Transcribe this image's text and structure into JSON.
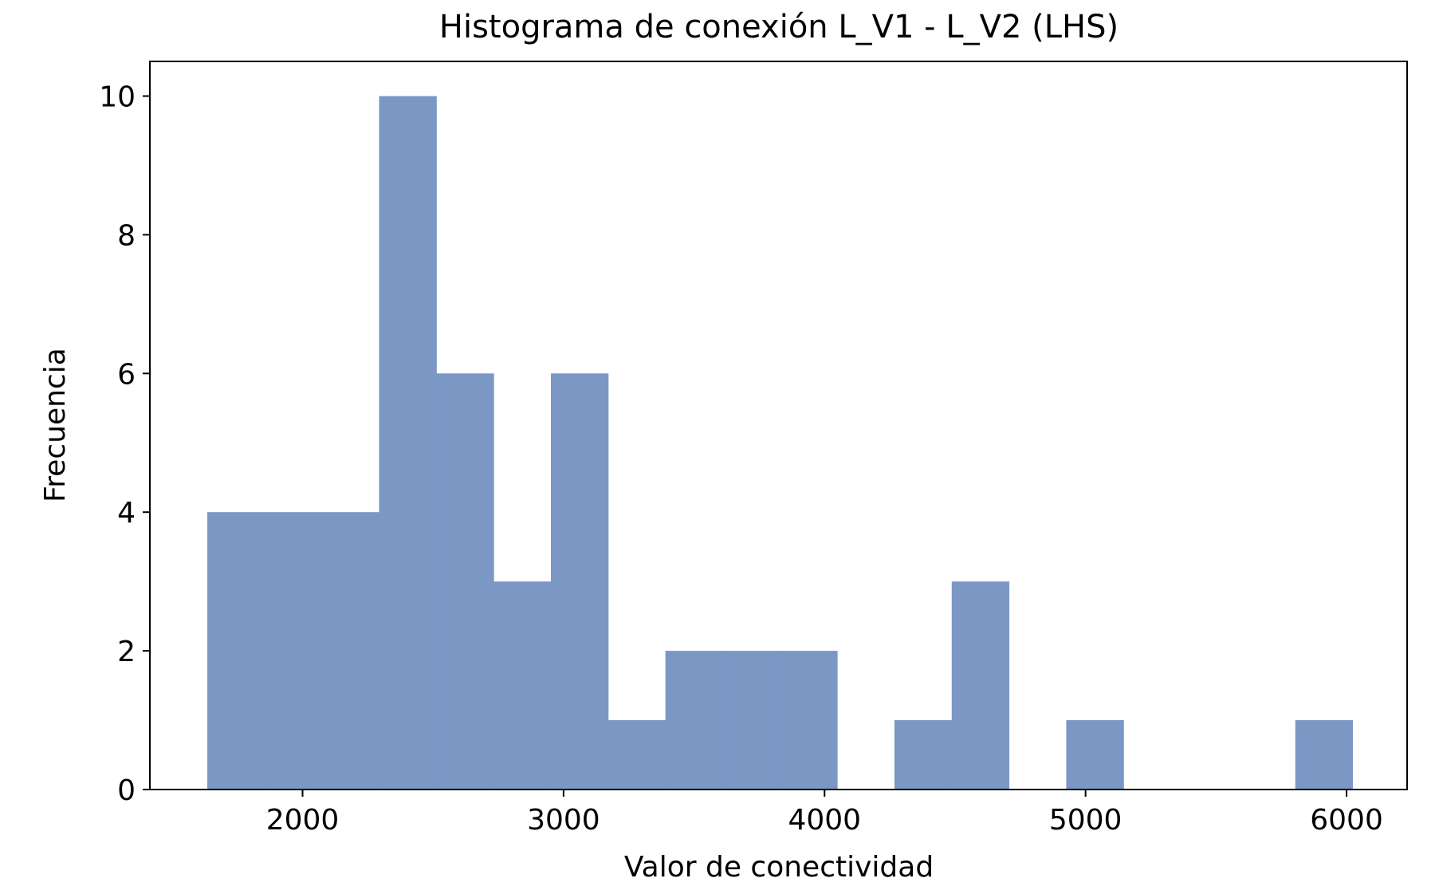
{
  "chart_data": {
    "type": "bar",
    "title": "Histograma de conexión L_V1 - L_V2 (LHS)",
    "xlabel": "Valor de conectividad",
    "ylabel": "Frecuencia",
    "xlim": [
      1415,
      6232
    ],
    "ylim": [
      0,
      10.5
    ],
    "xticks": [
      2000,
      3000,
      4000,
      5000,
      6000
    ],
    "yticks": [
      0,
      2,
      4,
      6,
      8,
      10
    ],
    "bar_color": "#7b97c4",
    "bin_start": 1635,
    "bin_width": 219.4,
    "counts": [
      4,
      4,
      4,
      10,
      6,
      3,
      6,
      1,
      2,
      2,
      2,
      0,
      1,
      3,
      0,
      1,
      0,
      0,
      0,
      1
    ],
    "grid": false,
    "legend": "none"
  }
}
